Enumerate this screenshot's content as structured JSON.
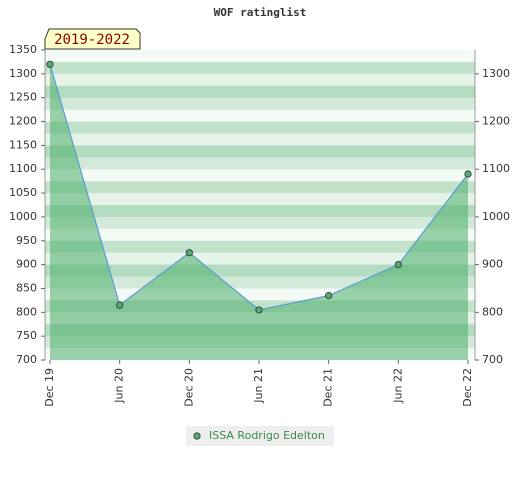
{
  "chart_data": {
    "type": "line",
    "title": "WOF ratinglist",
    "annotation": "2019-2022",
    "categories": [
      "Dec 19",
      "Jun 20",
      "Dec 20",
      "Jun 21",
      "Dec 21",
      "Jun 22",
      "Dec 22"
    ],
    "series": [
      {
        "name": "ISSA Rodrigo Edelton",
        "color": "#5aaa6a",
        "line_color": "#5b9bd5",
        "fill_color": "#4caf6a",
        "values": [
          1320,
          815,
          925,
          805,
          835,
          900,
          1090
        ]
      }
    ],
    "ylim": [
      700,
      1350
    ],
    "yticks": [
      700,
      750,
      800,
      850,
      900,
      950,
      1000,
      1050,
      1100,
      1150,
      1200,
      1250,
      1300,
      1350
    ],
    "y2lim": [
      700,
      1350
    ],
    "y2ticks": [
      700,
      800,
      900,
      1000,
      1100,
      1200,
      1300
    ]
  }
}
